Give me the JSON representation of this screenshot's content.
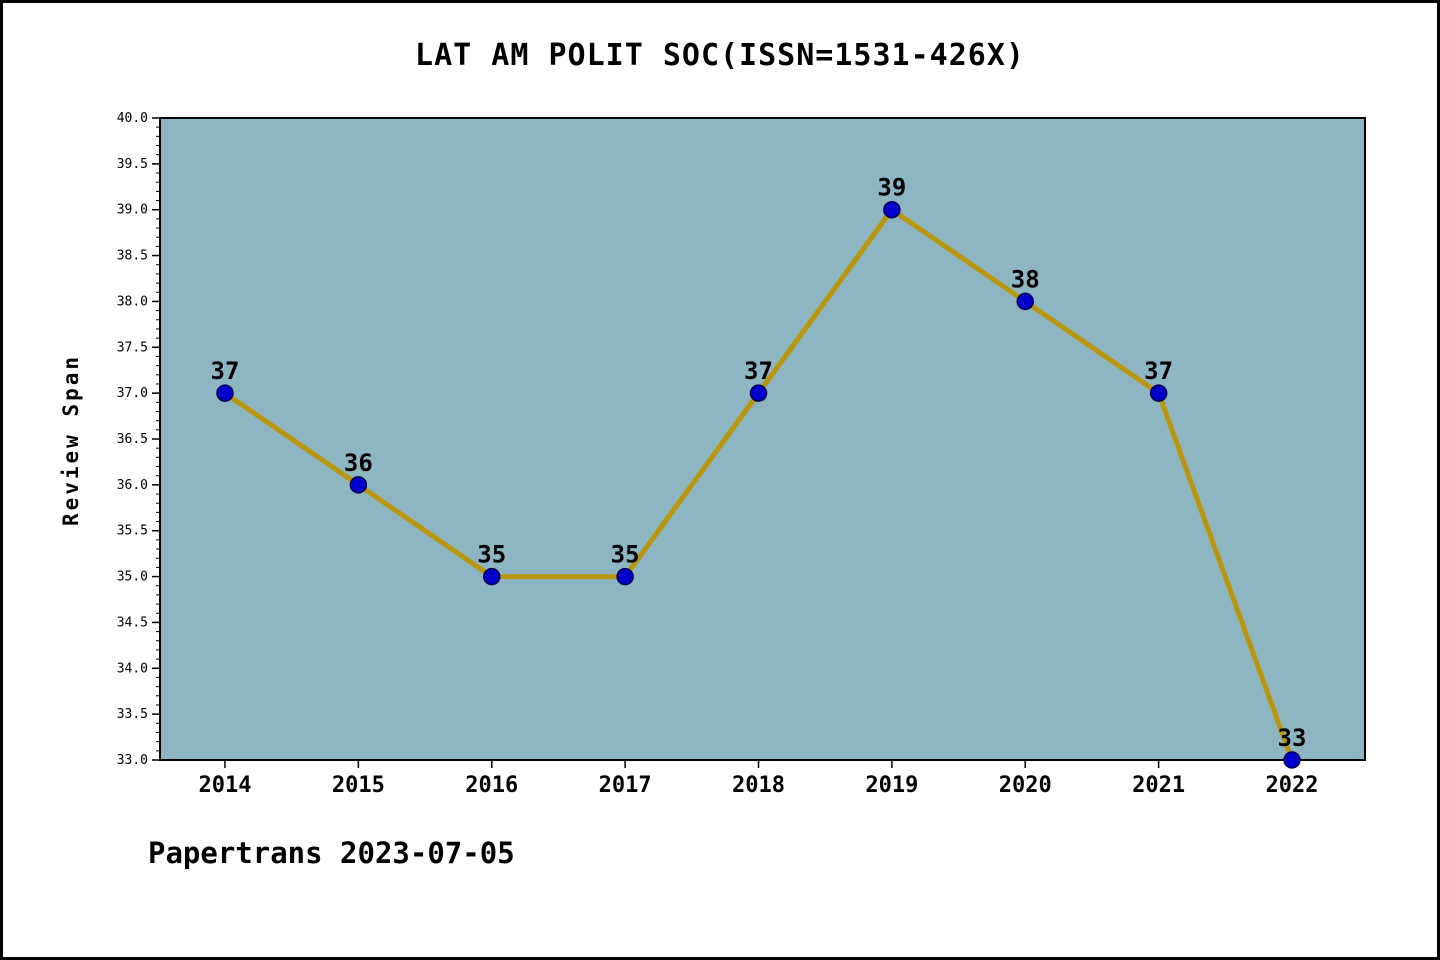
{
  "title": "LAT AM POLIT SOC(ISSN=1531-426X)",
  "footer": "Papertrans 2023-07-05",
  "chart_data": {
    "type": "line",
    "title": "LAT AM POLIT SOC(ISSN=1531-426X)",
    "categories": [
      "2014",
      "2015",
      "2016",
      "2017",
      "2018",
      "2019",
      "2020",
      "2021",
      "2022"
    ],
    "values": [
      37,
      36,
      35,
      35,
      37,
      39,
      38,
      37,
      33
    ],
    "point_labels": [
      "37",
      "36",
      "35",
      "35",
      "37",
      "39",
      "38",
      "37",
      "33"
    ],
    "xlabel": "",
    "ylabel": "Review Span",
    "ylim": [
      33.0,
      40.0
    ],
    "ytick_major_step": 0.5,
    "ytick_minor_step": 0.1,
    "grid": false,
    "legend_position": "none",
    "colors": {
      "page_bg": "#ffffff",
      "plot_bg": "#8db5c2",
      "line": "#b8960e",
      "marker": "#0000cd",
      "marker_edge": "#00004d",
      "text": "#000000"
    }
  }
}
